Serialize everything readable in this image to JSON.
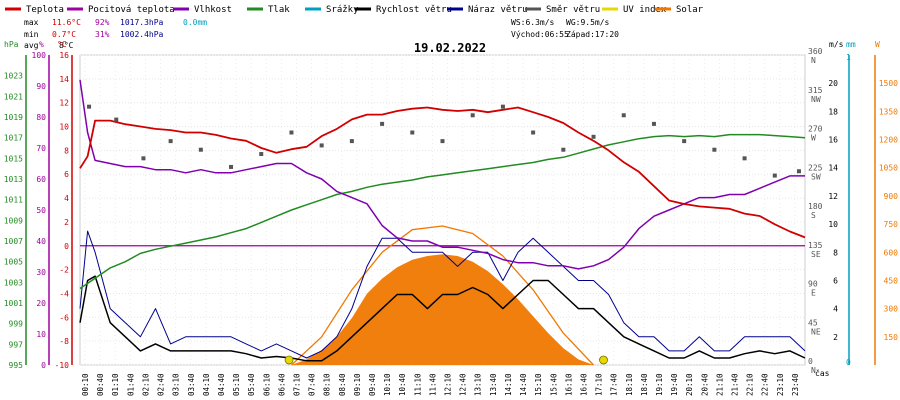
{
  "chart_data": {
    "type": "line",
    "title": "19.02.2022",
    "legend": [
      {
        "name": "Teplota",
        "color": "#d00000"
      },
      {
        "name": "Pocitová teplota",
        "color": "#a000a0"
      },
      {
        "name": "Vlhkost",
        "color": "#8000b0"
      },
      {
        "name": "Tlak",
        "color": "#228b22"
      },
      {
        "name": "Srážky",
        "color": "#00a0c0"
      },
      {
        "name": "Rychlost větru",
        "color": "#000000"
      },
      {
        "name": "Náraz větru",
        "color": "#000090"
      },
      {
        "name": "Směr větru",
        "color": "#555555"
      },
      {
        "name": "UV index",
        "color": "#e8d800"
      },
      {
        "name": "Solar",
        "color": "#f07800"
      }
    ],
    "stats": {
      "max_label": "max",
      "max_temp": "11.6°C",
      "max_hum": "92%",
      "max_pres": "1017.3hPa",
      "max_rain": "0.0mm",
      "min_label": "min",
      "min_temp": "0.7°C",
      "min_hum": "31%",
      "min_pres": "1002.4hPa",
      "avg_label": "avg",
      "avg_temp": "8°C",
      "ws": "WS:6.3m/s",
      "wg": "WG:9.5m/s",
      "sunrise": "Východ:06:55",
      "sunset": "Západ:17:20",
      "stats_color_temp": "#d00000",
      "stats_color_hum": "#a000a0",
      "stats_color_pres": "#000090",
      "stats_color_rain": "#00a0c0"
    },
    "xlabel": "čas",
    "x_ticks": [
      "00:10",
      "00:40",
      "01:10",
      "01:40",
      "02:10",
      "02:40",
      "03:10",
      "03:40",
      "04:10",
      "04:40",
      "05:10",
      "05:40",
      "06:10",
      "06:40",
      "07:10",
      "07:40",
      "08:10",
      "08:40",
      "09:10",
      "09:40",
      "10:10",
      "10:40",
      "11:10",
      "11:40",
      "12:10",
      "12:40",
      "13:10",
      "13:40",
      "14:10",
      "14:40",
      "15:10",
      "15:40",
      "16:10",
      "16:40",
      "17:10",
      "17:40",
      "18:10",
      "18:40",
      "19:10",
      "19:40",
      "20:10",
      "20:40",
      "21:10",
      "21:40",
      "22:10",
      "22:40",
      "23:10",
      "23:40"
    ],
    "axes": {
      "pressure": {
        "unit": "hPa",
        "min": 995,
        "max": 1025,
        "ticks": [
          995,
          997,
          999,
          1001,
          1003,
          1005,
          1007,
          1009,
          1011,
          1013,
          1015,
          1017,
          1019,
          1021,
          1023
        ],
        "color": "#228b22"
      },
      "humidity": {
        "unit": "%",
        "min": 0,
        "max": 100,
        "ticks": [
          0,
          10,
          20,
          30,
          40,
          50,
          60,
          70,
          80,
          90,
          100
        ],
        "color": "#a000a0"
      },
      "temperature": {
        "unit": "°C",
        "min": -10,
        "max": 16,
        "ticks": [
          -10,
          -8,
          -6,
          -4,
          -2,
          0,
          2,
          4,
          6,
          8,
          10,
          12,
          14,
          16
        ],
        "color": "#d00000"
      },
      "direction": {
        "unit": "°",
        "min": 0,
        "max": 360,
        "ticks": [
          0,
          45,
          90,
          135,
          180,
          225,
          270,
          315,
          360
        ],
        "compass": [
          "N",
          "NE",
          "E",
          "SE",
          "S",
          "SW",
          "W",
          "NW",
          "N"
        ],
        "color": "#555555"
      },
      "wind": {
        "unit": "m/s",
        "min": 0,
        "max": 22,
        "ticks": [
          0,
          2,
          4,
          6,
          8,
          10,
          12,
          14,
          16,
          18,
          20
        ],
        "color": "#000000"
      },
      "rain": {
        "unit": "mm",
        "min": 0,
        "max": 1,
        "ticks": [
          0,
          1
        ],
        "color": "#00a0c0"
      },
      "solar": {
        "unit": "W",
        "min": 0,
        "max": 1650,
        "ticks": [
          0,
          150,
          300,
          450,
          600,
          750,
          900,
          1050,
          1200,
          1350,
          1500
        ],
        "color": "#f07800"
      }
    },
    "series": [
      {
        "name": "Teplota",
        "unit": "°C",
        "color": "#d00000",
        "x": [
          0,
          0.25,
          0.5,
          1,
          1.5,
          2,
          2.5,
          3,
          3.5,
          4,
          4.5,
          5,
          5.5,
          6,
          6.5,
          7,
          7.5,
          8,
          8.5,
          9,
          9.5,
          10,
          10.5,
          11,
          11.5,
          12,
          12.5,
          13,
          13.5,
          14,
          14.5,
          15,
          15.5,
          16,
          16.5,
          17,
          17.5,
          18,
          18.5,
          19,
          19.5,
          20,
          20.5,
          21,
          21.5,
          22,
          22.5,
          23,
          23.5,
          24
        ],
        "values": [
          6.5,
          7.5,
          10.5,
          10.5,
          10.2,
          10,
          9.8,
          9.7,
          9.5,
          9.5,
          9.3,
          9,
          8.8,
          8.2,
          7.8,
          8.1,
          8.3,
          9.2,
          9.8,
          10.6,
          11,
          11,
          11.3,
          11.5,
          11.6,
          11.4,
          11.3,
          11.4,
          11.2,
          11.4,
          11.6,
          11.2,
          10.8,
          10.3,
          9.5,
          8.8,
          8,
          7,
          6.2,
          5,
          3.8,
          3.5,
          3.3,
          3.2,
          3.1,
          2.7,
          2.5,
          1.8,
          1.2,
          0.7
        ]
      },
      {
        "name": "Vlhkost",
        "unit": "%",
        "color": "#8000b0",
        "x": [
          0,
          0.25,
          0.5,
          1,
          1.5,
          2,
          2.5,
          3,
          3.5,
          4,
          4.5,
          5,
          5.5,
          6,
          6.5,
          7,
          7.5,
          8,
          8.5,
          9,
          9.5,
          10,
          10.5,
          11,
          11.5,
          12,
          12.5,
          13,
          13.5,
          14,
          14.5,
          15,
          15.5,
          16,
          16.5,
          17,
          17.5,
          18,
          18.5,
          19,
          19.5,
          20,
          20.5,
          21,
          21.5,
          22,
          22.5,
          23,
          23.5,
          24
        ],
        "values": [
          92,
          75,
          66,
          65,
          64,
          64,
          63,
          63,
          62,
          63,
          62,
          62,
          63,
          64,
          65,
          65,
          62,
          60,
          56,
          54,
          52,
          45,
          41,
          40,
          40,
          38,
          38,
          37,
          36,
          34,
          33,
          33,
          32,
          32,
          31,
          32,
          34,
          38,
          44,
          48,
          50,
          52,
          54,
          54,
          55,
          55,
          57,
          59,
          61,
          61
        ]
      },
      {
        "name": "Tlak",
        "unit": "hPa",
        "color": "#228b22",
        "x": [
          0,
          0.5,
          1,
          1.5,
          2,
          2.5,
          3,
          3.5,
          4,
          4.5,
          5,
          5.5,
          6,
          6.5,
          7,
          7.5,
          8,
          8.5,
          9,
          9.5,
          10,
          10.5,
          11,
          11.5,
          12,
          12.5,
          13,
          13.5,
          14,
          14.5,
          15,
          15.5,
          16,
          16.5,
          17,
          17.5,
          18,
          18.5,
          19,
          19.5,
          20,
          20.5,
          21,
          21.5,
          22,
          22.5,
          23,
          23.5,
          24
        ],
        "values": [
          1002.4,
          1003.4,
          1004.4,
          1005,
          1005.8,
          1006.2,
          1006.5,
          1006.8,
          1007.1,
          1007.4,
          1007.8,
          1008.2,
          1008.8,
          1009.4,
          1010,
          1010.5,
          1011,
          1011.5,
          1011.8,
          1012.2,
          1012.5,
          1012.7,
          1012.9,
          1013.2,
          1013.4,
          1013.6,
          1013.8,
          1014,
          1014.2,
          1014.4,
          1014.6,
          1014.9,
          1015.1,
          1015.5,
          1015.9,
          1016.3,
          1016.6,
          1016.9,
          1017.1,
          1017.2,
          1017.1,
          1017.2,
          1017.1,
          1017.3,
          1017.3,
          1017.3,
          1017.2,
          1017.1,
          1017
        ]
      },
      {
        "name": "Rychlost větru",
        "unit": "m/s",
        "color": "#000000",
        "x": [
          0,
          0.25,
          0.5,
          1,
          1.5,
          2,
          2.5,
          3,
          3.5,
          4,
          4.5,
          5,
          5.5,
          6,
          6.5,
          7,
          7.5,
          8,
          8.5,
          9,
          9.5,
          10,
          10.5,
          11,
          11.5,
          12,
          12.5,
          13,
          13.5,
          14,
          14.5,
          15,
          15.5,
          16,
          16.5,
          17,
          17.5,
          18,
          18.5,
          19,
          19.5,
          20,
          20.5,
          21,
          21.5,
          22,
          22.5,
          23,
          23.5,
          24
        ],
        "values": [
          3,
          6,
          6.3,
          3,
          2,
          1,
          1.5,
          1,
          1,
          1,
          1,
          1,
          0.8,
          0.5,
          0.6,
          0.5,
          0.3,
          0.3,
          1,
          2,
          3,
          4,
          5,
          5,
          4,
          5,
          5,
          5.5,
          5,
          4,
          5,
          6,
          6,
          5,
          4,
          4,
          3,
          2,
          1.5,
          1,
          0.5,
          0.5,
          1,
          0.5,
          0.5,
          0.8,
          1,
          0.8,
          1,
          0.5
        ]
      },
      {
        "name": "Náraz větru",
        "unit": "m/s",
        "color": "#000090",
        "x": [
          0,
          0.25,
          0.5,
          1,
          1.5,
          2,
          2.5,
          3,
          3.5,
          4,
          4.5,
          5,
          5.5,
          6,
          6.5,
          7,
          7.5,
          8,
          8.5,
          9,
          9.5,
          10,
          10.5,
          11,
          11.5,
          12,
          12.5,
          13,
          13.5,
          14,
          14.5,
          15,
          15.5,
          16,
          16.5,
          17,
          17.5,
          18,
          18.5,
          19,
          19.5,
          20,
          20.5,
          21,
          21.5,
          22,
          22.5,
          23,
          23.5,
          24
        ],
        "values": [
          4,
          9.5,
          8,
          4,
          3,
          2,
          4,
          1.5,
          2,
          2,
          2,
          2,
          1.5,
          1,
          1.5,
          1,
          0.5,
          1,
          2,
          4,
          7,
          9,
          9,
          8,
          8,
          8,
          7,
          8,
          8,
          6,
          8,
          9,
          8,
          7,
          6,
          6,
          5,
          3,
          2,
          2,
          1,
          1,
          2,
          1,
          1,
          2,
          2,
          2,
          2,
          1
        ]
      },
      {
        "name": "Směr větru",
        "unit": "°",
        "color": "#555555",
        "x": [
          0.3,
          1.2,
          2.1,
          3,
          4,
          5,
          6,
          7,
          8,
          9,
          10,
          11,
          12,
          13,
          14,
          15,
          16,
          17,
          18,
          19,
          20,
          21,
          22,
          23,
          23.8
        ],
        "values": [
          300,
          285,
          240,
          260,
          250,
          230,
          245,
          270,
          255,
          260,
          280,
          270,
          260,
          290,
          300,
          270,
          250,
          265,
          290,
          280,
          260,
          250,
          240,
          220,
          225
        ]
      },
      {
        "name": "Solar",
        "unit": "W",
        "color": "#f07800",
        "x": [
          7,
          7.5,
          8,
          8.5,
          9,
          9.5,
          10,
          10.5,
          11,
          11.5,
          12,
          12.5,
          13,
          13.5,
          14,
          14.5,
          15,
          15.5,
          16,
          16.5,
          17
        ],
        "values": [
          0,
          30,
          80,
          150,
          250,
          380,
          460,
          520,
          560,
          580,
          590,
          580,
          550,
          500,
          430,
          350,
          260,
          170,
          90,
          30,
          0
        ]
      },
      {
        "name": "Solar max",
        "unit": "W",
        "color": "#f07800",
        "x": [
          7,
          8,
          9,
          10,
          11,
          12,
          13,
          14,
          15,
          16,
          17
        ],
        "values": [
          0,
          150,
          400,
          600,
          720,
          740,
          700,
          580,
          400,
          170,
          0
        ]
      }
    ],
    "markers": {
      "sunrise_hour": 6.92,
      "sunset_hour": 17.33,
      "color": "#e8d800"
    }
  }
}
